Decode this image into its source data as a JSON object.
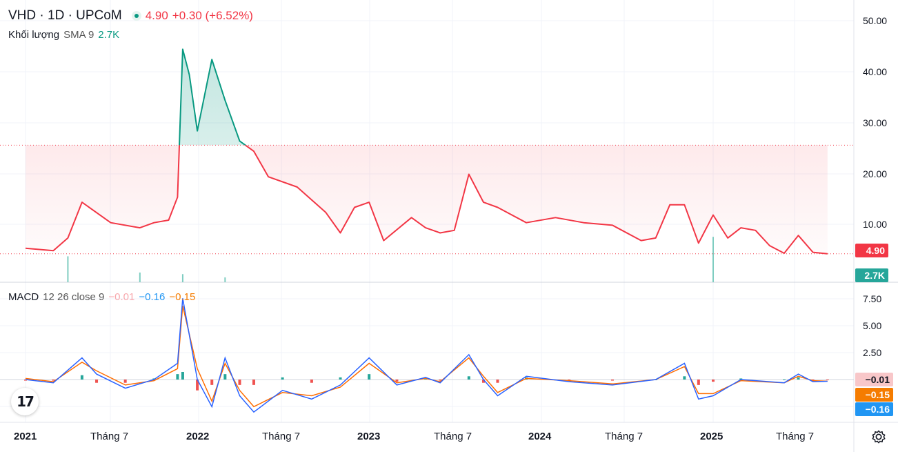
{
  "header": {
    "symbol": "VHD · 1D · UPCoM",
    "price": "4.90",
    "change": "+0.30 (+6.52%)",
    "volume_label": "Khối lượng",
    "volume_sma": "SMA 9",
    "volume_value": "2.7K"
  },
  "macd_legend": {
    "name": "MACD",
    "params": "12 26 close 9",
    "hist": "−0.01",
    "macd": "−0.16",
    "signal": "−0.15"
  },
  "price_axis_ticks": [
    "50.00",
    "40.00",
    "30.00",
    "20.00",
    "10.00"
  ],
  "macd_axis_ticks": [
    "7.50",
    "5.00",
    "2.50"
  ],
  "tags": {
    "price": "4.90",
    "volume": "2.7K",
    "macd_hist": "−0.01",
    "macd_signal": "−0.15",
    "macd_line": "−0.16"
  },
  "time_axis": [
    {
      "label": "2021",
      "year": true
    },
    {
      "label": "Tháng 7",
      "year": false
    },
    {
      "label": "2022",
      "year": true
    },
    {
      "label": "Tháng 7",
      "year": false
    },
    {
      "label": "2023",
      "year": true
    },
    {
      "label": "Tháng 7",
      "year": false
    },
    {
      "label": "2024",
      "year": true
    },
    {
      "label": "Tháng 7",
      "year": false
    },
    {
      "label": "2025",
      "year": true
    },
    {
      "label": "Tháng 7",
      "year": false
    }
  ],
  "colors": {
    "up": "#089981",
    "down": "#f23645",
    "macd_line": "#2962ff",
    "signal_line": "#ff6d00",
    "macd_tag": "#2196f3",
    "signal_tag": "#f57c00",
    "hist_tag": "#f8c7c9"
  },
  "chart_data": [
    {
      "type": "line",
      "title": "VHD · 1D · UPCoM",
      "ylabel": "",
      "ylim": [
        0,
        52
      ],
      "baseline": 26.2,
      "last_price": 4.9,
      "x": [
        "2021-01",
        "2021-03",
        "2021-04",
        "2021-05",
        "2021-07",
        "2021-09",
        "2021-10",
        "2021-11",
        "2021-11-20",
        "2021-12",
        "2021-12-15",
        "2022-01",
        "2022-02",
        "2022-03",
        "2022-04",
        "2022-05",
        "2022-06",
        "2022-08",
        "2022-10",
        "2022-11",
        "2022-12",
        "2023-01",
        "2023-02",
        "2023-04",
        "2023-05",
        "2023-06",
        "2023-07",
        "2023-08",
        "2023-09",
        "2023-10",
        "2023-12",
        "2024-02",
        "2024-04",
        "2024-06",
        "2024-08",
        "2024-09",
        "2024-10",
        "2024-11",
        "2024-12",
        "2025-01",
        "2025-02",
        "2025-03",
        "2025-04",
        "2025-05",
        "2025-06",
        "2025-07",
        "2025-08",
        "2025-09"
      ],
      "values": [
        6.0,
        5.5,
        8.0,
        15.0,
        11.0,
        10.0,
        11.0,
        11.5,
        16.0,
        45.0,
        40.0,
        29.0,
        43.0,
        35.0,
        27.0,
        25.0,
        20.0,
        18.0,
        13.0,
        9.0,
        14.0,
        15.0,
        7.5,
        12.0,
        10.0,
        9.0,
        9.5,
        20.5,
        15.0,
        14.0,
        11.0,
        12.0,
        11.0,
        10.5,
        7.5,
        8.0,
        14.5,
        14.5,
        7.0,
        12.5,
        8.0,
        10.0,
        9.5,
        6.5,
        5.0,
        8.5,
        5.2,
        4.9
      ]
    },
    {
      "type": "bar",
      "title": "Khối lượng",
      "note": "SMA 9",
      "last_value": "2.7K",
      "x": [
        "2021-04",
        "2021-09",
        "2021-12",
        "2022-03",
        "2025-01"
      ],
      "values": [
        8.0,
        3.0,
        2.5,
        1.5,
        14.0
      ]
    },
    {
      "type": "line",
      "title": "MACD 12 26 close 9",
      "ylim": [
        -6,
        9
      ],
      "x": [
        "2021-01",
        "2021-03",
        "2021-05",
        "2021-06",
        "2021-08",
        "2021-10",
        "2021-11-20",
        "2021-12",
        "2022-01",
        "2022-02",
        "2022-03",
        "2022-04",
        "2022-05",
        "2022-07",
        "2022-09",
        "2022-11",
        "2023-01",
        "2023-03",
        "2023-05",
        "2023-06",
        "2023-08",
        "2023-09",
        "2023-10",
        "2023-12",
        "2024-03",
        "2024-06",
        "2024-09",
        "2024-11",
        "2024-12",
        "2025-01",
        "2025-03",
        "2025-06",
        "2025-07",
        "2025-08",
        "2025-09"
      ],
      "series": [
        {
          "name": "MACD",
          "values": [
            0.0,
            -0.3,
            2.0,
            0.5,
            -0.8,
            0.0,
            1.5,
            7.5,
            0.0,
            -2.5,
            2.0,
            -1.5,
            -3.0,
            -1.0,
            -1.8,
            -0.5,
            2.0,
            -0.5,
            0.2,
            -0.3,
            2.3,
            0.0,
            -1.5,
            0.3,
            -0.2,
            -0.5,
            0.0,
            1.5,
            -1.8,
            -1.5,
            0.0,
            -0.3,
            0.5,
            -0.2,
            -0.16
          ]
        },
        {
          "name": "Signal",
          "values": [
            0.1,
            -0.2,
            1.6,
            0.8,
            -0.5,
            -0.1,
            1.0,
            6.8,
            1.0,
            -2.0,
            1.5,
            -1.0,
            -2.5,
            -1.2,
            -1.5,
            -0.7,
            1.5,
            -0.3,
            0.1,
            -0.2,
            2.0,
            0.3,
            -1.2,
            0.1,
            -0.1,
            -0.4,
            0.0,
            1.2,
            -1.3,
            -1.3,
            -0.1,
            -0.3,
            0.3,
            -0.1,
            -0.15
          ]
        }
      ]
    }
  ]
}
